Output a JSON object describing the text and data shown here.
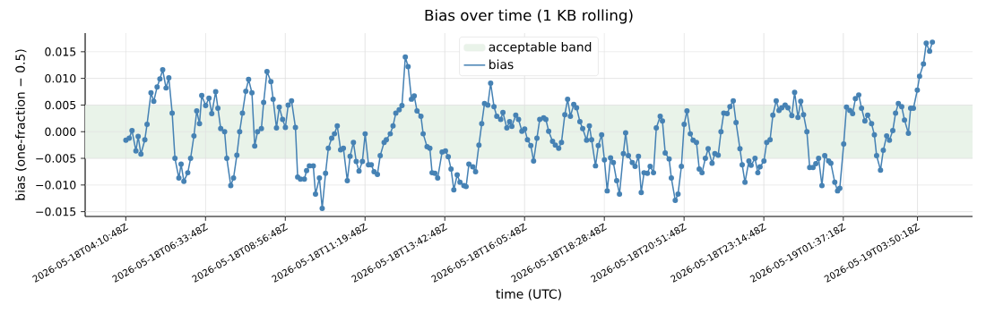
{
  "chart_data": {
    "type": "line",
    "title": "Bias over time (1 KB rolling)",
    "xlabel": "time (UTC)",
    "ylabel": "bias (one-fraction − 0.5)",
    "xlim": [
      "2026-05-18T02:58",
      "2026-05-19T05:29"
    ],
    "ylim": [
      -0.0159,
      0.0185
    ],
    "xticks": [
      {
        "value": "2026-05-18T04:10:48",
        "label": "2026-05-18T04:10:48Z"
      },
      {
        "value": "2026-05-18T06:33:48",
        "label": "2026-05-18T06:33:48Z"
      },
      {
        "value": "2026-05-18T08:56:48",
        "label": "2026-05-18T08:56:48Z"
      },
      {
        "value": "2026-05-18T11:19:48",
        "label": "2026-05-18T11:19:48Z"
      },
      {
        "value": "2026-05-18T13:42:48",
        "label": "2026-05-18T13:42:48Z"
      },
      {
        "value": "2026-05-18T16:05:48",
        "label": "2026-05-18T16:05:48Z"
      },
      {
        "value": "2026-05-18T18:28:48",
        "label": "2026-05-18T18:28:48Z"
      },
      {
        "value": "2026-05-18T20:51:48",
        "label": "2026-05-18T20:51:48Z"
      },
      {
        "value": "2026-05-18T23:14:48",
        "label": "2026-05-18T23:14:48Z"
      },
      {
        "value": "2026-05-19T01:37:18",
        "label": "2026-05-19T01:37:18Z"
      },
      {
        "value": "2026-05-19T03:50:18",
        "label": "2026-05-19T03:50:18Z"
      }
    ],
    "yticks": [
      {
        "value": -0.015,
        "label": "−0.015"
      },
      {
        "value": -0.01,
        "label": "−0.010"
      },
      {
        "value": -0.005,
        "label": "−0.005"
      },
      {
        "value": 0,
        "label": "0.000"
      },
      {
        "value": 0.005,
        "label": "0.005"
      },
      {
        "value": 0.01,
        "label": "0.010"
      },
      {
        "value": 0.015,
        "label": "0.015"
      }
    ],
    "grid": true,
    "legend": "top",
    "marker": "circle",
    "line_style": "solid",
    "bands": [
      {
        "axis": "y",
        "from": -0.005,
        "to": 0.005,
        "label": "acceptable band",
        "color": "#e9f3e9"
      }
    ],
    "series": [
      {
        "name": "bias",
        "color": "#4682b4",
        "x": [
          "2026-05-18T04:11",
          "2026-05-18T04:17",
          "2026-05-18T04:22",
          "2026-05-18T04:29",
          "2026-05-18T04:33",
          "2026-05-18T04:38",
          "2026-05-18T04:45",
          "2026-05-18T04:49",
          "2026-05-18T04:56",
          "2026-05-18T05:01",
          "2026-05-18T05:07",
          "2026-05-18T05:12",
          "2026-05-18T05:17",
          "2026-05-18T05:23",
          "2026-05-18T05:28",
          "2026-05-18T05:34",
          "2026-05-18T05:39",
          "2026-05-18T05:46",
          "2026-05-18T05:50",
          "2026-05-18T05:55",
          "2026-05-18T06:02",
          "2026-05-18T06:07",
          "2026-05-18T06:13",
          "2026-05-18T06:18",
          "2026-05-18T06:23",
          "2026-05-18T06:27",
          "2026-05-18T06:34",
          "2026-05-18T06:40",
          "2026-05-18T06:45",
          "2026-05-18T06:52",
          "2026-05-18T06:56",
          "2026-05-18T07:01",
          "2026-05-18T07:08",
          "2026-05-18T07:12",
          "2026-05-18T07:19",
          "2026-05-18T07:24",
          "2026-05-18T07:30",
          "2026-05-18T07:35",
          "2026-05-18T07:40",
          "2026-05-18T07:46",
          "2026-05-18T07:51",
          "2026-05-18T07:57",
          "2026-05-18T08:02",
          "2026-05-18T08:07",
          "2026-05-18T08:14",
          "2026-05-18T08:18",
          "2026-05-18T08:24",
          "2026-05-18T08:31",
          "2026-05-18T08:35",
          "2026-05-18T08:41",
          "2026-05-18T08:46",
          "2026-05-18T08:52",
          "2026-05-18T08:57",
          "2026-05-18T09:02",
          "2026-05-18T09:08",
          "2026-05-18T09:15",
          "2026-05-18T09:19",
          "2026-05-18T09:24",
          "2026-05-18T09:31",
          "2026-05-18T09:35",
          "2026-05-18T09:40",
          "2026-05-18T09:47",
          "2026-05-18T09:51",
          "2026-05-18T09:58",
          "2026-05-18T10:03",
          "2026-05-18T10:09",
          "2026-05-18T10:14",
          "2026-05-18T10:20",
          "2026-05-18T10:25",
          "2026-05-18T10:30",
          "2026-05-18T10:36",
          "2026-05-18T10:41",
          "2026-05-18T10:48",
          "2026-05-18T10:53",
          "2026-05-18T10:59",
          "2026-05-18T11:04",
          "2026-05-18T11:09",
          "2026-05-18T11:15",
          "2026-05-18T11:20",
          "2026-05-18T11:26",
          "2026-05-18T11:31",
          "2026-05-18T11:36",
          "2026-05-18T11:42",
          "2026-05-18T11:47",
          "2026-05-18T11:54",
          "2026-05-18T11:58",
          "2026-05-18T12:05",
          "2026-05-18T12:10",
          "2026-05-18T12:15",
          "2026-05-18T12:21",
          "2026-05-18T12:26",
          "2026-05-18T12:32",
          "2026-05-18T12:37",
          "2026-05-18T12:43",
          "2026-05-18T12:48",
          "2026-05-18T12:53",
          "2026-05-18T13:00",
          "2026-05-18T13:04",
          "2026-05-18T13:11",
          "2026-05-18T13:16",
          "2026-05-18T13:20",
          "2026-05-18T13:25",
          "2026-05-18T13:30",
          "2026-05-18T13:38",
          "2026-05-18T13:44",
          "2026-05-18T13:49",
          "2026-05-18T13:54",
          "2026-05-18T13:59",
          "2026-05-18T14:05",
          "2026-05-18T14:10",
          "2026-05-18T14:17",
          "2026-05-18T14:21",
          "2026-05-18T14:26",
          "2026-05-18T14:33",
          "2026-05-18T14:38",
          "2026-05-18T14:44",
          "2026-05-18T14:49",
          "2026-05-18T14:54",
          "2026-05-18T15:00",
          "2026-05-18T15:05",
          "2026-05-18T15:11",
          "2026-05-18T15:16",
          "2026-05-18T15:23",
          "2026-05-18T15:27",
          "2026-05-18T15:34",
          "2026-05-18T15:39",
          "2026-05-18T15:43",
          "2026-05-18T15:50",
          "2026-05-18T15:55",
          "2026-05-18T16:01",
          "2026-05-18T16:06",
          "2026-05-18T16:11",
          "2026-05-18T16:17",
          "2026-05-18T16:22",
          "2026-05-18T16:28",
          "2026-05-18T16:33",
          "2026-05-18T16:40",
          "2026-05-18T16:44",
          "2026-05-18T16:49",
          "2026-05-18T16:56",
          "2026-05-18T17:01",
          "2026-05-18T17:07",
          "2026-05-18T17:12",
          "2026-05-18T17:18",
          "2026-05-18T17:23",
          "2026-05-18T17:28",
          "2026-05-18T17:34",
          "2026-05-18T17:39",
          "2026-05-18T17:45",
          "2026-05-18T17:50",
          "2026-05-18T17:57",
          "2026-05-18T18:02",
          "2026-05-18T18:06",
          "2026-05-18T18:13",
          "2026-05-18T18:18",
          "2026-05-18T18:24",
          "2026-05-18T18:29",
          "2026-05-18T18:34",
          "2026-05-18T18:40",
          "2026-05-18T18:45",
          "2026-05-18T18:51",
          "2026-05-18T18:56",
          "2026-05-18T19:03",
          "2026-05-18T19:07",
          "2026-05-18T19:12",
          "2026-05-18T19:19",
          "2026-05-18T19:24",
          "2026-05-18T19:30",
          "2026-05-18T19:35",
          "2026-05-18T19:40",
          "2026-05-18T19:46",
          "2026-05-18T19:51",
          "2026-05-18T19:57",
          "2026-05-18T20:02",
          "2026-05-18T20:09",
          "2026-05-18T20:13",
          "2026-05-18T20:18",
          "2026-05-18T20:25",
          "2026-05-18T20:29",
          "2026-05-18T20:36",
          "2026-05-18T20:41",
          "2026-05-18T20:47",
          "2026-05-18T20:52",
          "2026-05-18T20:57",
          "2026-05-18T21:03",
          "2026-05-18T21:08",
          "2026-05-18T21:14",
          "2026-05-18T21:19",
          "2026-05-18T21:24",
          "2026-05-18T21:30",
          "2026-05-18T21:35",
          "2026-05-18T21:42",
          "2026-05-18T21:47",
          "2026-05-18T21:53",
          "2026-05-18T21:58",
          "2026-05-18T22:03",
          "2026-05-18T22:09",
          "2026-05-18T22:14",
          "2026-05-18T22:20",
          "2026-05-18T22:25",
          "2026-05-18T22:32",
          "2026-05-18T22:36",
          "2026-05-18T22:41",
          "2026-05-18T22:48",
          "2026-05-18T22:52",
          "2026-05-18T22:59",
          "2026-05-18T23:04",
          "2026-05-18T23:08",
          "2026-05-18T23:15",
          "2026-05-18T23:20",
          "2026-05-18T23:26",
          "2026-05-18T23:31",
          "2026-05-18T23:37",
          "2026-05-18T23:42",
          "2026-05-18T23:47",
          "2026-05-18T23:53",
          "2026-05-18T23:58",
          "2026-05-19T00:05",
          "2026-05-19T00:10",
          "2026-05-19T00:16",
          "2026-05-19T00:21",
          "2026-05-19T00:26",
          "2026-05-19T00:32",
          "2026-05-19T00:37",
          "2026-05-19T00:43",
          "2026-05-19T00:48",
          "2026-05-19T00:53",
          "2026-05-19T00:59",
          "2026-05-19T01:04",
          "2026-05-19T01:11",
          "2026-05-19T01:15",
          "2026-05-19T01:22",
          "2026-05-19T01:27",
          "2026-05-19T01:31",
          "2026-05-19T01:38",
          "2026-05-19T01:43",
          "2026-05-19T01:49",
          "2026-05-19T01:54",
          "2026-05-19T01:59",
          "2026-05-19T02:05",
          "2026-05-19T02:10",
          "2026-05-19T02:16",
          "2026-05-19T02:21",
          "2026-05-19T02:28",
          "2026-05-19T02:33",
          "2026-05-19T02:37",
          "2026-05-19T02:44",
          "2026-05-19T02:49",
          "2026-05-19T02:55",
          "2026-05-19T03:00",
          "2026-05-19T03:06",
          "2026-05-19T03:11",
          "2026-05-19T03:16",
          "2026-05-19T03:22",
          "2026-05-19T03:27",
          "2026-05-19T03:34",
          "2026-05-19T03:38",
          "2026-05-19T03:43",
          "2026-05-19T03:50",
          "2026-05-19T03:54",
          "2026-05-19T04:01",
          "2026-05-19T04:06",
          "2026-05-19T04:12",
          "2026-05-19T04:17"
        ],
        "values": [
          -0.0016,
          -0.0012,
          0.0002,
          -0.0036,
          -0.0009,
          -0.0042,
          -0.0015,
          0.0014,
          0.0073,
          0.0057,
          0.0084,
          0.0099,
          0.0116,
          0.0082,
          0.0101,
          0.0035,
          -0.005,
          -0.0087,
          -0.0061,
          -0.0093,
          -0.0077,
          -0.005,
          -0.0008,
          0.0039,
          0.0015,
          0.0068,
          0.0049,
          0.0063,
          0.0034,
          0.0075,
          0.0044,
          0.0006,
          0.0,
          -0.005,
          -0.0101,
          -0.0087,
          -0.0044,
          0.0,
          0.0035,
          0.0076,
          0.0098,
          0.0073,
          -0.0027,
          0.0,
          0.0006,
          0.0055,
          0.0113,
          0.0094,
          0.0061,
          0.0007,
          0.0046,
          0.0023,
          0.0008,
          0.005,
          0.0058,
          0.0008,
          -0.0085,
          -0.0089,
          -0.0089,
          -0.0073,
          -0.0064,
          -0.0064,
          -0.0117,
          -0.0087,
          -0.0144,
          -0.0078,
          -0.0031,
          -0.0012,
          -0.0004,
          0.0011,
          -0.0034,
          -0.0031,
          -0.0092,
          -0.0046,
          -0.002,
          -0.0056,
          -0.0074,
          -0.0056,
          -0.0004,
          -0.0062,
          -0.0062,
          -0.0075,
          -0.008,
          -0.0045,
          -0.002,
          -0.0015,
          -0.0004,
          0.0011,
          0.0035,
          0.0041,
          0.0049,
          0.014,
          0.0122,
          0.0061,
          0.0067,
          0.0039,
          0.0029,
          -0.0004,
          -0.0028,
          -0.0031,
          -0.0077,
          -0.0078,
          -0.0087,
          -0.0038,
          -0.0036,
          -0.0047,
          -0.007,
          -0.0109,
          -0.0081,
          -0.0095,
          -0.0101,
          -0.0103,
          -0.0061,
          -0.0066,
          -0.0075,
          -0.0025,
          0.0015,
          0.0053,
          0.005,
          0.0091,
          0.0047,
          0.0029,
          0.0023,
          0.0036,
          0.0007,
          0.0019,
          0.001,
          0.0031,
          0.0023,
          0.0001,
          0.0005,
          -0.0015,
          -0.0026,
          -0.0055,
          -0.0012,
          0.0023,
          0.0026,
          0.0023,
          0.0001,
          -0.0018,
          -0.0025,
          -0.0031,
          -0.002,
          0.0032,
          0.0061,
          0.0029,
          0.0051,
          0.0045,
          0.0019,
          0.0006,
          -0.0016,
          0.0011,
          -0.0015,
          -0.0064,
          -0.0026,
          -0.0006,
          -0.0053,
          -0.0111,
          -0.0049,
          -0.0058,
          -0.0092,
          -0.0117,
          -0.0041,
          -0.0002,
          -0.0045,
          -0.0058,
          -0.0065,
          -0.0046,
          -0.0114,
          -0.0077,
          -0.0078,
          -0.0065,
          -0.0077,
          0.0007,
          0.0029,
          0.002,
          -0.004,
          -0.0051,
          -0.0087,
          -0.0129,
          -0.0117,
          -0.0065,
          0.0014,
          0.0039,
          -0.0004,
          -0.0016,
          -0.002,
          -0.007,
          -0.0077,
          -0.005,
          -0.0032,
          -0.0059,
          -0.0041,
          -0.0044,
          0.0,
          0.0035,
          0.0034,
          0.0047,
          0.0058,
          0.0017,
          -0.0032,
          -0.0062,
          -0.0095,
          -0.0055,
          -0.0063,
          -0.005,
          -0.0077,
          -0.0066,
          -0.0055,
          -0.002,
          -0.0015,
          0.0031,
          0.0058,
          0.004,
          0.0045,
          0.005,
          0.0045,
          0.003,
          0.0074,
          0.0027,
          0.0057,
          0.0032,
          0.0,
          -0.0067,
          -0.0067,
          -0.006,
          -0.005,
          -0.0101,
          -0.0045,
          -0.0055,
          -0.0059,
          -0.0095,
          -0.0111,
          -0.0106,
          -0.0023,
          0.0046,
          0.004,
          0.0034,
          0.0062,
          0.0069,
          0.0044,
          0.002,
          0.0031,
          0.0015,
          -0.0006,
          -0.0045,
          -0.0072,
          -0.0035,
          -0.0008,
          -0.0016,
          0.0002,
          0.0035,
          0.0053,
          0.0047,
          0.0022,
          -0.0003,
          0.0044,
          0.0044,
          0.0078,
          0.0104,
          0.0127,
          0.0166,
          0.0151,
          0.0168
        ]
      }
    ]
  }
}
